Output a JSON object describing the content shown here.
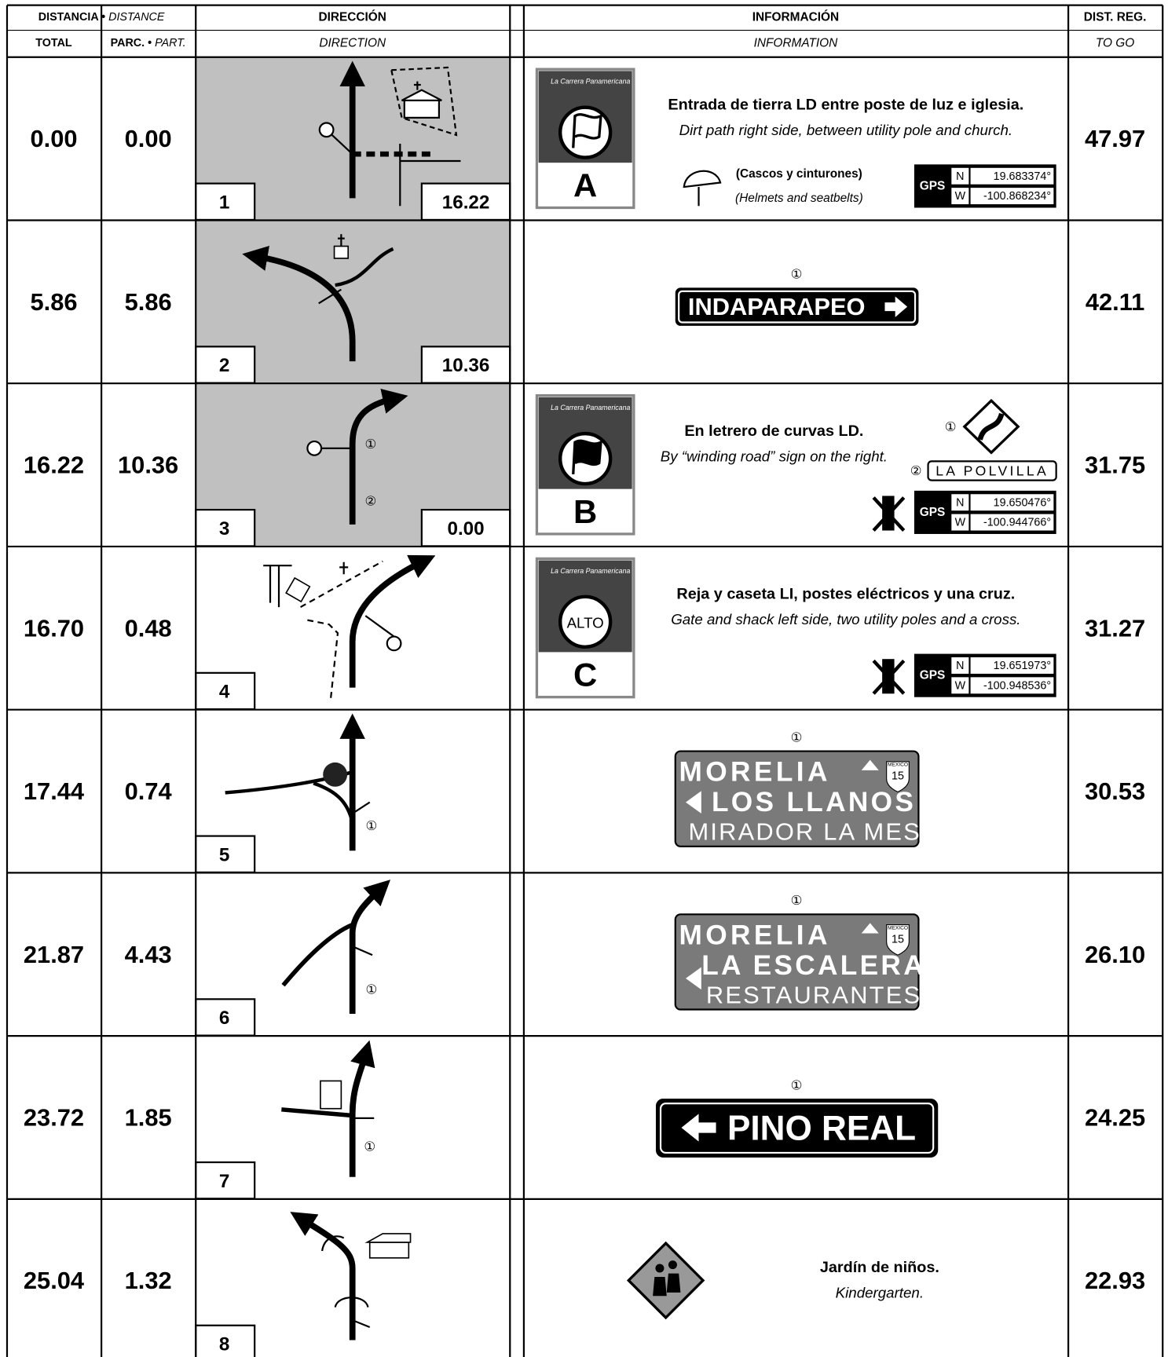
{
  "header": {
    "distance": "DISTANCIA •",
    "distance_en": "DISTANCE",
    "total": "TOTAL",
    "partial": "PARC. •",
    "partial_en": "PART.",
    "direction": "DIRECCIÓN",
    "direction_en": "DIRECTION",
    "information": "INFORMACIÓN",
    "information_en": "INFORMATION",
    "to_go": "DIST. REG.",
    "to_go_en": "TO GO"
  },
  "symbols": {
    "one": "①",
    "two": "②"
  },
  "logo_text": "La Carrera Panamericana",
  "gps_label": "GPS",
  "north": "N",
  "west": "W",
  "rows": [
    {
      "total": "0.00",
      "partial": "0.00",
      "step": "1",
      "step_distance": "16.22",
      "to_go": "47.97",
      "checkpoint": "A",
      "text_es": "Entrada de tierra LD entre poste de luz e iglesia.",
      "text_en": "Dirt path right side, between utility pole and church.",
      "note_es": "(Cascos y cinturones)",
      "note_en": "(Helmets and seatbelts)",
      "gps": {
        "n": "19.683374°",
        "w": "-100.868234°"
      }
    },
    {
      "total": "5.86",
      "partial": "5.86",
      "step": "2",
      "step_distance": "10.36",
      "to_go": "42.11",
      "sign": [
        "INDAPARAPEO"
      ]
    },
    {
      "total": "16.22",
      "partial": "10.36",
      "step": "3",
      "step_distance": "0.00",
      "to_go": "31.75",
      "checkpoint": "B",
      "text_es": "En letrero de curvas LD.",
      "text_en": "By “winding road” sign on the right.",
      "sign": [
        "LA POLVILLA"
      ],
      "gps": {
        "n": "19.650476°",
        "w": "-100.944766°"
      }
    },
    {
      "total": "16.70",
      "partial": "0.48",
      "step": "4",
      "to_go": "31.27",
      "checkpoint": "C",
      "badge": "ALTO",
      "text_es": "Reja y caseta LI, postes eléctricos y una cruz.",
      "text_en": "Gate and shack left side, two utility poles and a cross.",
      "gps": {
        "n": "19.651973°",
        "w": "-100.948536°"
      }
    },
    {
      "total": "17.44",
      "partial": "0.74",
      "step": "5",
      "to_go": "30.53",
      "sign": [
        "MORELIA",
        "LOS LLANOS",
        "MIRADOR LA MESA"
      ],
      "shield_top": "MEXICO",
      "shield": "15"
    },
    {
      "total": "21.87",
      "partial": "4.43",
      "step": "6",
      "to_go": "26.10",
      "sign": [
        "MORELIA",
        "LA ESCALERA",
        "RESTAURANTES"
      ],
      "shield_top": "MEXICO",
      "shield": "15"
    },
    {
      "total": "23.72",
      "partial": "1.85",
      "step": "7",
      "to_go": "24.25",
      "sign": [
        "PINO REAL"
      ]
    },
    {
      "total": "25.04",
      "partial": "1.32",
      "step": "8",
      "to_go": "22.93",
      "text_es": "Jardín de niños.",
      "text_en": "Kindergarten."
    }
  ]
}
